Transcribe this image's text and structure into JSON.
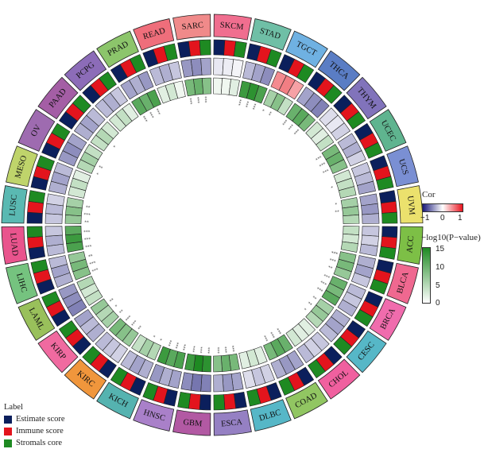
{
  "chart_data": {
    "type": "heatmap",
    "layout": "circular",
    "cancers": [
      "SKCM",
      "STAD",
      "TGCT",
      "THCA",
      "THYM",
      "UCEC",
      "UCS",
      "UVM",
      "ACC",
      "BLCA",
      "BRCA",
      "CESC",
      "CHOL",
      "COAD",
      "DLBC",
      "ESCA",
      "GBM",
      "HNSC",
      "KICH",
      "KIRC",
      "KIRP",
      "LAML",
      "LIHC",
      "LUAD",
      "LUSC",
      "MESO",
      "OV",
      "PAAD",
      "PCPG",
      "PRAD",
      "READ",
      "SARC"
    ],
    "cancer_colors": [
      "#f06e8f",
      "#6fbfa6",
      "#6fb1e2",
      "#5a7dc4",
      "#8173bb",
      "#5fb48f",
      "#7a8fd3",
      "#ebe16d",
      "#7dbf46",
      "#ef6890",
      "#f06cad",
      "#56b7c7",
      "#f0609f",
      "#91c662",
      "#56b7c7",
      "#9580c3",
      "#b259a3",
      "#a980c9",
      "#55b3b0",
      "#f0963c",
      "#f06aa0",
      "#99c05b",
      "#75c37f",
      "#e9548d",
      "#5ab9b2",
      "#bfd46b",
      "#9e6bb0",
      "#a45ea5",
      "#8c6cb8",
      "#8cc56b",
      "#ef6e7b",
      "#f08a8a"
    ],
    "score_tracks": {
      "labels": [
        "Estimate score",
        "Immune score",
        "Stromals core"
      ],
      "colors": [
        "#0b1f5c",
        "#e3141d",
        "#1e8a22"
      ]
    },
    "correlation": [
      [
        -0.1,
        -0.08,
        -0.05
      ],
      [
        -0.3,
        -0.4,
        -0.5
      ],
      [
        0.5,
        0.55,
        0.4
      ],
      [
        -0.4,
        -0.5,
        -0.55
      ],
      [
        -0.15,
        -0.1,
        -0.2
      ],
      [
        -0.3,
        -0.35,
        -0.2
      ],
      [
        -0.25,
        -0.3,
        -0.4
      ],
      [
        -0.4,
        -0.45,
        -0.35
      ],
      [
        -0.25,
        -0.2,
        -0.3
      ],
      [
        -0.35,
        -0.4,
        -0.25
      ],
      [
        -0.3,
        -0.25,
        -0.35
      ],
      [
        -0.35,
        -0.4,
        -0.3
      ],
      [
        -0.25,
        -0.2,
        -0.3
      ],
      [
        -0.4,
        -0.45,
        -0.35
      ],
      [
        -0.2,
        -0.25,
        -0.15
      ],
      [
        -0.4,
        -0.45,
        -0.35
      ],
      [
        -0.55,
        -0.6,
        -0.5
      ],
      [
        -0.4,
        -0.35,
        -0.45
      ],
      [
        -0.35,
        -0.4,
        -0.3
      ],
      [
        -0.2,
        -0.25,
        -0.3
      ],
      [
        -0.35,
        -0.3,
        -0.4
      ],
      [
        -0.55,
        -0.5,
        -0.45
      ],
      [
        -0.35,
        -0.4,
        -0.3
      ],
      [
        -0.3,
        -0.35,
        -0.25
      ],
      [
        -0.25,
        -0.3,
        -0.2
      ],
      [
        -0.35,
        -0.4,
        -0.3
      ],
      [
        -0.45,
        -0.5,
        -0.4
      ],
      [
        -0.35,
        -0.4,
        -0.3
      ],
      [
        -0.3,
        -0.35,
        -0.25
      ],
      [
        -0.4,
        -0.35,
        -0.45
      ],
      [
        -0.3,
        -0.35,
        -0.25
      ],
      [
        -0.45,
        -0.5,
        -0.4
      ]
    ],
    "neg_log10_p": [
      [
        1,
        1,
        2
      ],
      [
        13,
        14,
        12
      ],
      [
        6,
        8,
        4
      ],
      [
        10,
        11,
        9
      ],
      [
        3,
        2,
        4
      ],
      [
        9,
        10,
        8
      ],
      [
        3,
        4,
        5
      ],
      [
        6,
        7,
        5
      ],
      [
        4,
        3,
        5
      ],
      [
        8,
        9,
        7
      ],
      [
        10,
        9,
        11
      ],
      [
        6,
        7,
        5
      ],
      [
        2,
        2,
        3
      ],
      [
        10,
        11,
        9
      ],
      [
        2,
        3,
        2
      ],
      [
        9,
        10,
        8
      ],
      [
        14,
        15,
        13
      ],
      [
        12,
        11,
        13
      ],
      [
        5,
        6,
        4
      ],
      [
        7,
        8,
        9
      ],
      [
        6,
        5,
        7
      ],
      [
        4,
        3,
        5
      ],
      [
        8,
        9,
        7
      ],
      [
        12,
        13,
        11
      ],
      [
        7,
        8,
        6
      ],
      [
        3,
        4,
        2
      ],
      [
        5,
        6,
        4
      ],
      [
        4,
        5,
        3
      ],
      [
        3,
        4,
        2
      ],
      [
        11,
        10,
        12
      ],
      [
        2,
        3,
        1
      ],
      [
        9,
        10,
        8
      ]
    ],
    "significance_marker": "*",
    "significance": [
      [
        "",
        "",
        ""
      ],
      [
        "***",
        "***",
        "***"
      ],
      [
        "*",
        "**",
        ""
      ],
      [
        "***",
        "***",
        "***"
      ],
      [
        "",
        "",
        ""
      ],
      [
        "***",
        "***",
        "***"
      ],
      [
        "",
        "*",
        ""
      ],
      [
        "*",
        "**",
        ""
      ],
      [
        "",
        "",
        ""
      ],
      [
        "***",
        "***",
        "**"
      ],
      [
        "***",
        "***",
        "***"
      ],
      [
        "**",
        "**",
        "*"
      ],
      [
        "",
        "",
        ""
      ],
      [
        "***",
        "***",
        "***"
      ],
      [
        "",
        "",
        ""
      ],
      [
        "***",
        "***",
        "***"
      ],
      [
        "***",
        "***",
        "***"
      ],
      [
        "***",
        "***",
        "***"
      ],
      [
        "*",
        "*",
        ""
      ],
      [
        "**",
        "***",
        "***"
      ],
      [
        "**",
        "*",
        "**"
      ],
      [
        "",
        "",
        ""
      ],
      [
        "***",
        "***",
        "**"
      ],
      [
        "***",
        "***",
        "***"
      ],
      [
        "**",
        "***",
        "**"
      ],
      [
        "",
        "",
        ""
      ],
      [
        "*",
        "**",
        ""
      ],
      [
        "",
        "*",
        ""
      ],
      [
        "",
        "",
        ""
      ],
      [
        "***",
        "***",
        "***"
      ],
      [
        "",
        "",
        ""
      ],
      [
        "***",
        "***",
        "***"
      ]
    ],
    "cor_legend": {
      "title": "Cor",
      "range": [
        -1,
        1
      ],
      "ticks": [
        "−1",
        "0",
        "1"
      ],
      "colors": [
        "#1a1a7a",
        "#ffffff",
        "#e8141e"
      ]
    },
    "p_legend": {
      "title": "−log10(P−value)",
      "range": [
        0,
        15
      ],
      "ticks": [
        "15",
        "10",
        "5",
        "0"
      ],
      "colors": [
        "#ffffff",
        "#1e8a22"
      ]
    },
    "label_legend_title": "Label"
  }
}
